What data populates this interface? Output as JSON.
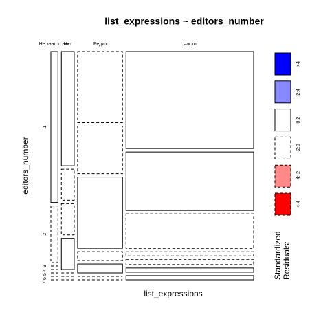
{
  "chart_data": {
    "type": "mosaic",
    "title": "list_expressions ~ editors_number",
    "x_label": "list_expressions",
    "y_label": "editors_number",
    "categories": [
      "Не знал о них",
      "Нет",
      "Редко",
      "Часто"
    ],
    "rows": [
      "1",
      "2",
      "3",
      "4",
      "5",
      "6",
      "7"
    ],
    "counts": [
      [
        8,
        3,
        0,
        0,
        0,
        0,
        0
      ],
      [
        11,
        3,
        3,
        3,
        0,
        0,
        0
      ],
      [
        24,
        16,
        24,
        3,
        3,
        0,
        0
      ],
      [
        93,
        56,
        33,
        4,
        5,
        4,
        4
      ]
    ],
    "shading": [
      [
        2,
        3,
        3,
        3,
        3,
        3,
        3
      ],
      [
        2,
        3,
        3,
        2,
        3,
        3,
        3
      ],
      [
        3,
        3,
        2,
        3,
        2,
        3,
        3
      ],
      [
        2,
        2,
        3,
        3,
        3,
        2,
        2
      ]
    ],
    "legend": {
      "title": "Standardized\nResiduals:",
      "labels": [
        ">4",
        "2:4",
        "0:2",
        "-2:0",
        "-4:-2",
        "<-4"
      ],
      "colors": [
        "#0000ff",
        "#8888ff",
        "#ffffff",
        "#ffffff",
        "#ff8888",
        "#ff0000"
      ],
      "dashed": [
        false,
        false,
        false,
        true,
        true,
        true
      ]
    }
  }
}
